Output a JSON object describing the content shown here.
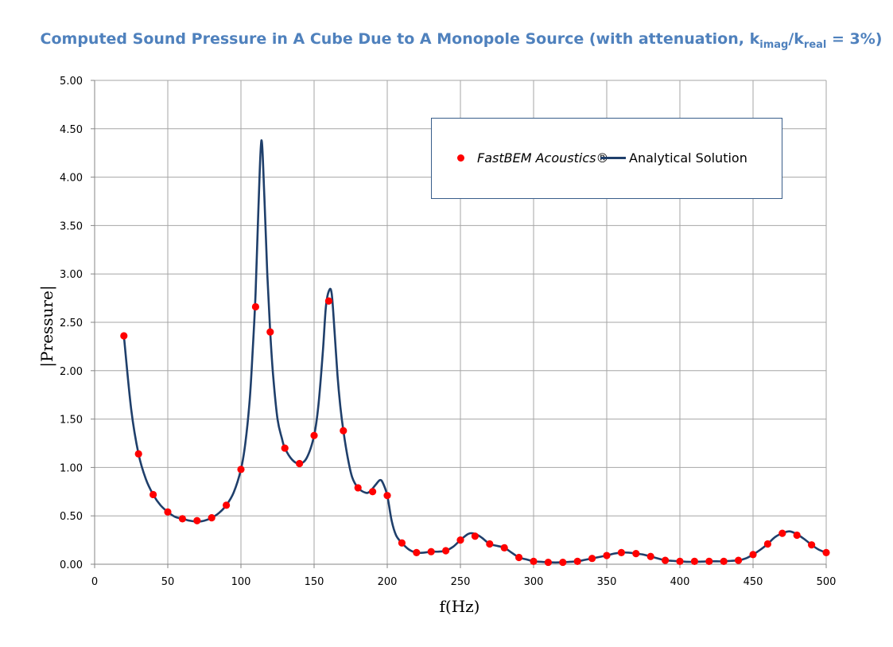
{
  "title": {
    "main": "Computed Sound Pressure in A Cube Due to A Monopole Source (with attenuation, k",
    "sub1": "imag",
    "slash": "/k",
    "sub2": "real",
    "tail": " = 3%)"
  },
  "colors": {
    "title": "#4f81bd",
    "markers": "#ff0000",
    "line": "#1f3f6b",
    "grid": "#a6a6a6"
  },
  "legend": {
    "fastbem": "FastBEM Acoustics®",
    "analytical": "Analytical Solution",
    "placement": "top-right"
  },
  "chart_data": {
    "type": "scatter",
    "title": "Computed Sound Pressure in A Cube Due to A Monopole Source (with attenuation, kimag/kreal = 3%)",
    "xlabel": "f(Hz)",
    "ylabel": "|Pressure|",
    "xlim": [
      0,
      500
    ],
    "ylim": [
      0,
      5
    ],
    "grid": true,
    "x_ticks": [
      "0",
      "50",
      "100",
      "150",
      "200",
      "250",
      "300",
      "350",
      "400",
      "450",
      "500"
    ],
    "y_ticks": [
      "0.00",
      "0.50",
      "1.00",
      "1.50",
      "2.00",
      "2.50",
      "3.00",
      "3.50",
      "4.00",
      "4.50",
      "5.00"
    ],
    "series": [
      {
        "name": "FastBEM Acoustics®",
        "kind": "markers",
        "x": [
          20,
          30,
          40,
          50,
          60,
          70,
          80,
          90,
          100,
          110,
          120,
          130,
          140,
          150,
          160,
          170,
          180,
          190,
          200,
          210,
          220,
          230,
          240,
          250,
          260,
          270,
          280,
          290,
          300,
          310,
          320,
          330,
          340,
          350,
          360,
          370,
          380,
          390,
          400,
          410,
          420,
          430,
          440,
          450,
          460,
          470,
          480,
          490,
          500
        ],
        "y": [
          2.36,
          1.14,
          0.72,
          0.54,
          0.47,
          0.45,
          0.48,
          0.61,
          0.98,
          2.66,
          2.4,
          1.2,
          1.04,
          1.33,
          2.72,
          1.38,
          0.79,
          0.75,
          0.71,
          0.22,
          0.12,
          0.13,
          0.14,
          0.25,
          0.29,
          0.21,
          0.17,
          0.07,
          0.03,
          0.02,
          0.02,
          0.03,
          0.06,
          0.09,
          0.12,
          0.11,
          0.08,
          0.04,
          0.03,
          0.03,
          0.03,
          0.03,
          0.04,
          0.1,
          0.21,
          0.32,
          0.3,
          0.2,
          0.12
        ]
      },
      {
        "name": "Analytical Solution",
        "kind": "line",
        "x": [
          20,
          25,
          30,
          35,
          40,
          45,
          50,
          55,
          60,
          65,
          70,
          75,
          80,
          85,
          90,
          95,
          100,
          103,
          106,
          108,
          110,
          112,
          114,
          116,
          118,
          120,
          122,
          125,
          128,
          130,
          135,
          140,
          145,
          150,
          153,
          156,
          158,
          160,
          162,
          164,
          166,
          168,
          170,
          173,
          176,
          180,
          185,
          188,
          192,
          195,
          197,
          200,
          203,
          206,
          210,
          215,
          220,
          225,
          230,
          235,
          240,
          245,
          250,
          255,
          258,
          262,
          265,
          270,
          275,
          280,
          285,
          290,
          295,
          300,
          305,
          310,
          315,
          320,
          325,
          330,
          335,
          340,
          345,
          350,
          355,
          360,
          365,
          370,
          375,
          380,
          385,
          390,
          395,
          400,
          405,
          410,
          415,
          420,
          425,
          430,
          435,
          440,
          445,
          450,
          455,
          460,
          465,
          470,
          475,
          480,
          485,
          490,
          495,
          500
        ],
        "y": [
          2.36,
          1.6,
          1.14,
          0.88,
          0.72,
          0.61,
          0.54,
          0.49,
          0.47,
          0.45,
          0.44,
          0.45,
          0.48,
          0.53,
          0.61,
          0.74,
          0.98,
          1.25,
          1.7,
          2.2,
          2.8,
          3.7,
          4.38,
          3.8,
          3.0,
          2.4,
          1.95,
          1.5,
          1.3,
          1.2,
          1.08,
          1.04,
          1.1,
          1.33,
          1.65,
          2.2,
          2.65,
          2.82,
          2.8,
          2.4,
          1.95,
          1.62,
          1.38,
          1.1,
          0.9,
          0.79,
          0.74,
          0.75,
          0.82,
          0.87,
          0.84,
          0.71,
          0.45,
          0.3,
          0.22,
          0.15,
          0.12,
          0.12,
          0.13,
          0.13,
          0.14,
          0.18,
          0.25,
          0.31,
          0.32,
          0.3,
          0.27,
          0.21,
          0.19,
          0.17,
          0.12,
          0.07,
          0.05,
          0.03,
          0.025,
          0.02,
          0.018,
          0.02,
          0.025,
          0.03,
          0.045,
          0.06,
          0.075,
          0.09,
          0.11,
          0.12,
          0.12,
          0.11,
          0.1,
          0.08,
          0.06,
          0.04,
          0.035,
          0.03,
          0.025,
          0.025,
          0.027,
          0.03,
          0.03,
          0.03,
          0.035,
          0.04,
          0.06,
          0.1,
          0.15,
          0.21,
          0.28,
          0.32,
          0.34,
          0.31,
          0.26,
          0.2,
          0.15,
          0.12
        ]
      }
    ]
  }
}
